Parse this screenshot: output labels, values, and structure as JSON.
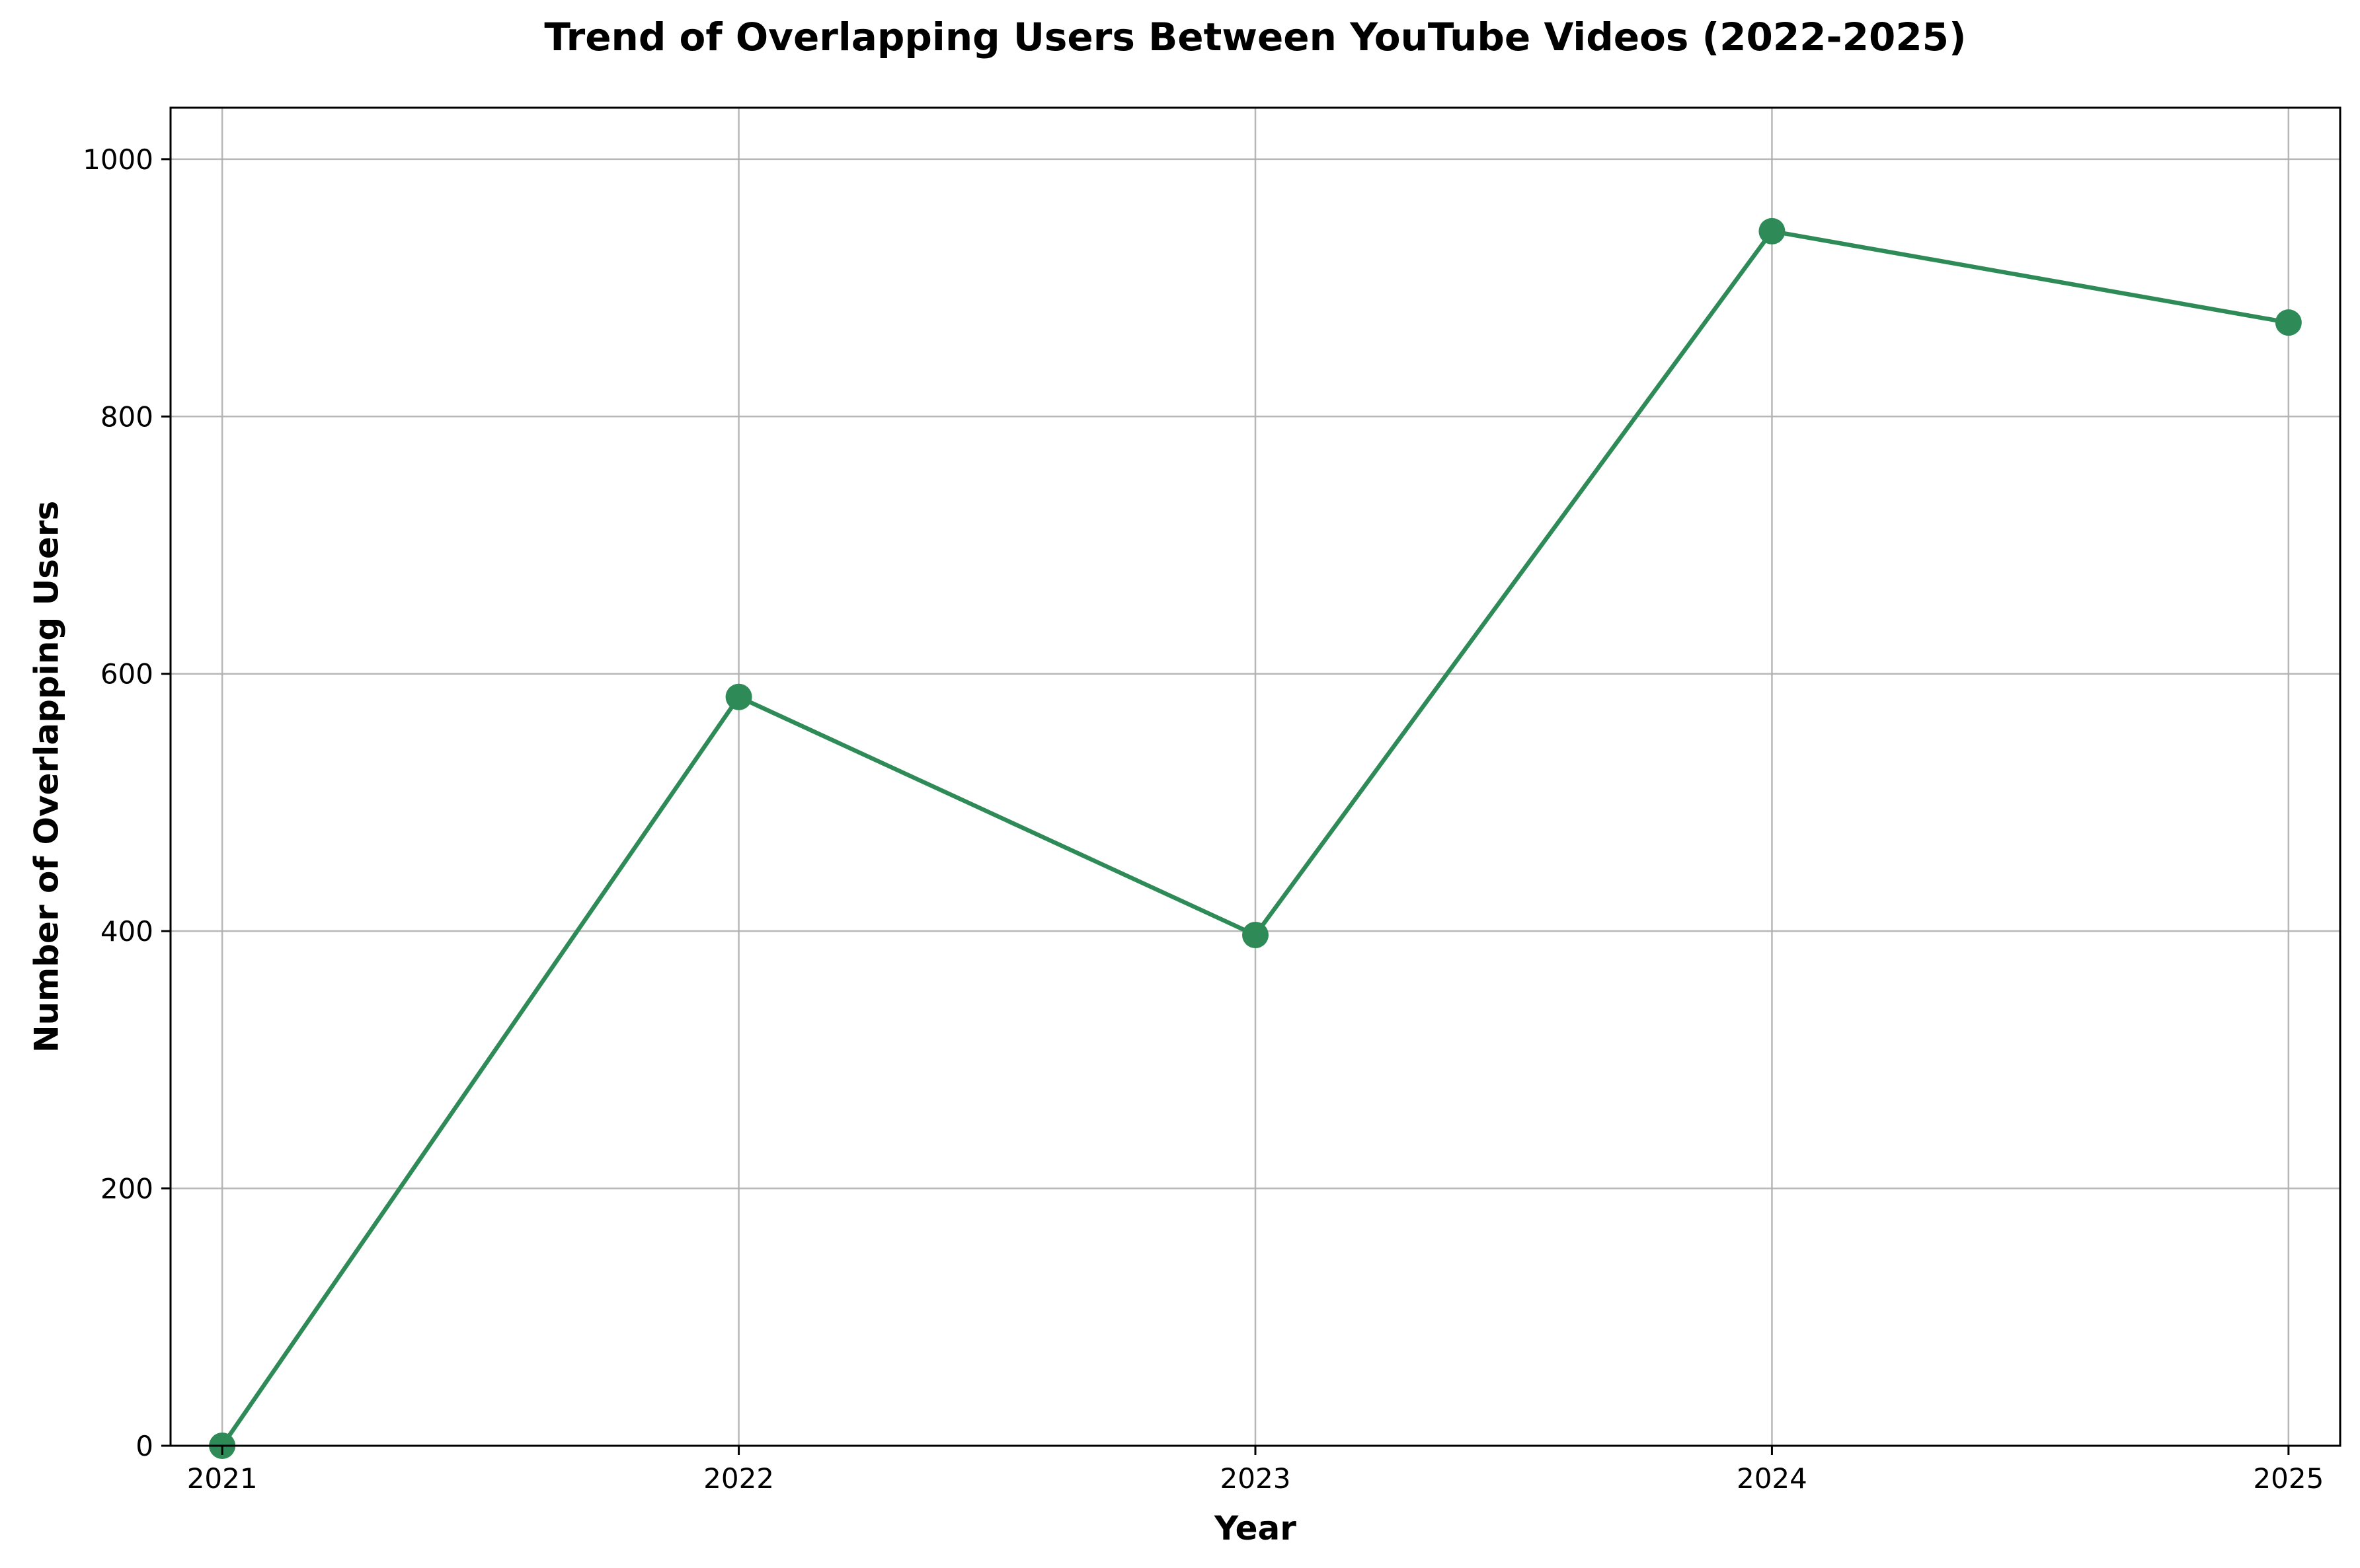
{
  "chart_data": {
    "type": "line",
    "title": "Trend of Overlapping Users Between YouTube Videos (2022-2025)",
    "xlabel": "Year",
    "ylabel": "Number of Overlapping Users",
    "x": [
      "2021",
      "2022",
      "2023",
      "2024",
      "2025"
    ],
    "y": [
      0,
      582,
      397,
      944,
      873
    ],
    "xlim": [
      2020.9,
      2025.1
    ],
    "ylim": [
      0,
      1040
    ],
    "yticks": [
      0,
      200,
      400,
      600,
      800,
      1000
    ],
    "xticks": [
      "2021",
      "2022",
      "2023",
      "2024",
      "2025"
    ],
    "grid": true,
    "marker": "circle",
    "colors": {
      "line": "#2e8b57",
      "marker": "#2e8b57"
    }
  }
}
